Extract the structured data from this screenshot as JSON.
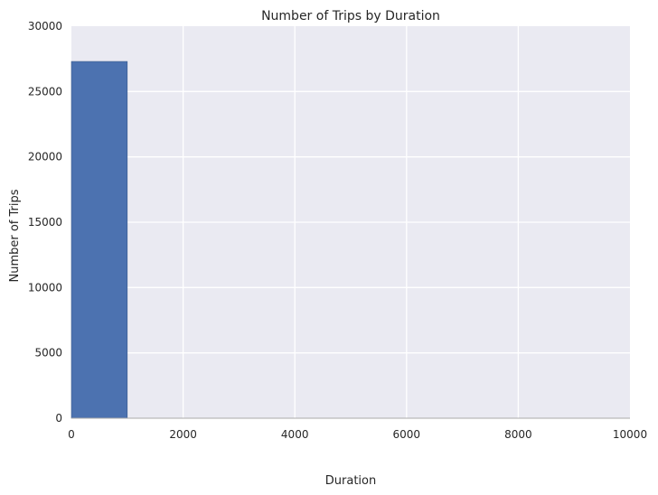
{
  "chart_data": {
    "type": "bar",
    "title": "Number of Trips by Duration",
    "xlabel": "Duration",
    "ylabel": "Number of Trips",
    "xlim": [
      0,
      10000
    ],
    "ylim": [
      0,
      30000
    ],
    "x_ticks": [
      "0",
      "2000",
      "4000",
      "6000",
      "8000",
      "10000"
    ],
    "y_ticks": [
      "0",
      "5000",
      "10000",
      "15000",
      "20000",
      "25000",
      "30000"
    ],
    "bins": [
      {
        "x0": 0,
        "x1": 1000,
        "value": 27300
      }
    ],
    "grid": true,
    "colors": {
      "bar": "#4c72b0",
      "plot_background": "#eaeaf2",
      "grid": "#ffffff"
    }
  }
}
